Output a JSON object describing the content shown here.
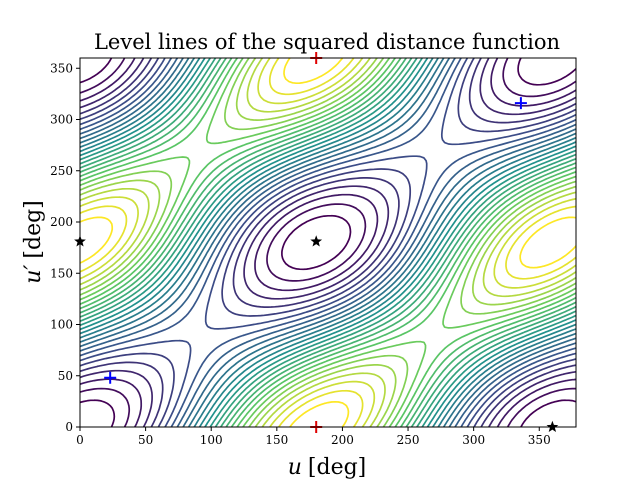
{
  "chart_data": {
    "type": "contour",
    "title": "Level lines of the squared distance function",
    "xlabel_var": "u",
    "xlabel_unit": "[deg]",
    "ylabel_var": "u′",
    "ylabel_unit": "[deg]",
    "xlim": [
      0,
      378
    ],
    "ylim": [
      0,
      360
    ],
    "xticks": [
      0,
      50,
      100,
      150,
      200,
      250,
      300,
      350
    ],
    "yticks": [
      0,
      50,
      100,
      150,
      200,
      250,
      300,
      350
    ],
    "grid": false,
    "colormap": [
      "#440154",
      "#3b528b",
      "#21918c",
      "#5ec962",
      "#fde725"
    ],
    "markers": [
      {
        "name": "blue-plus",
        "shape": "plus",
        "color": "#0000ff",
        "x": 23,
        "y": 48
      },
      {
        "name": "blue-plus",
        "shape": "plus",
        "color": "#0000ff",
        "x": 336,
        "y": 316
      },
      {
        "name": "black-star",
        "shape": "star",
        "color": "#000000",
        "x": 0,
        "y": 181
      },
      {
        "name": "black-star",
        "shape": "star",
        "color": "#000000",
        "x": 180,
        "y": 181
      },
      {
        "name": "black-star",
        "shape": "star",
        "color": "#000000",
        "x": 360,
        "y": 0
      },
      {
        "name": "red-plus",
        "shape": "plus",
        "color": "#e00000",
        "x": 180,
        "y": 0
      },
      {
        "name": "red-plus",
        "shape": "plus",
        "color": "#e00000",
        "x": 180,
        "y": 360
      }
    ]
  }
}
